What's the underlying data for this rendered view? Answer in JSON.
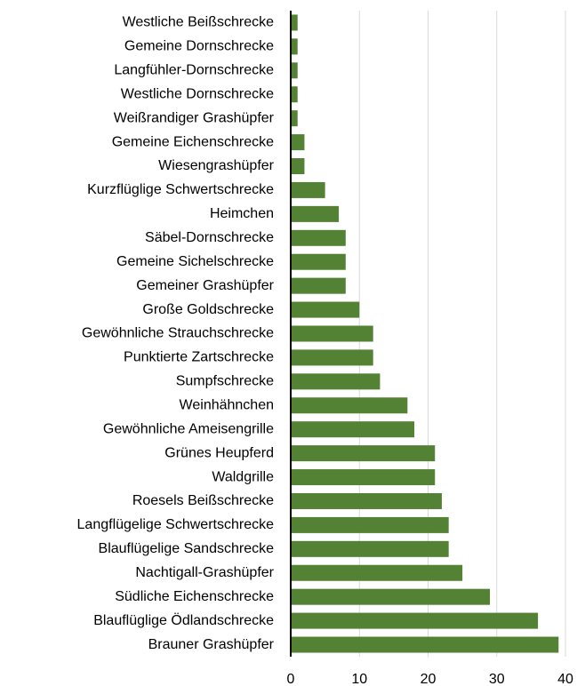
{
  "chart_data": {
    "type": "barh",
    "categories": [
      "Westliche Beißschrecke",
      "Gemeine Dornschrecke",
      "Langfühler-Dornschrecke",
      "Westliche Dornschrecke",
      "Weißrandiger Grashüpfer",
      "Gemeine Eichenschrecke",
      "Wiesengrashüpfer",
      "Kurzflüglige Schwertschrecke",
      "Heimchen",
      "Säbel-Dornschrecke",
      "Gemeine Sichelschrecke",
      "Gemeiner Grashüpfer",
      "Große Goldschrecke",
      "Gewöhnliche Strauchschrecke",
      "Punktierte Zartschrecke",
      "Sumpfschrecke",
      "Weinhähnchen",
      "Gewöhnliche Ameisengrille",
      "Grünes Heupferd",
      "Waldgrille",
      "Roesels Beißschrecke",
      "Langflügelige Schwertschrecke",
      "Blauflügelige Sandschrecke",
      "Nachtigall-Grashüpfer",
      "Südliche Eichenschrecke",
      "Blauflüglige Ödlandschrecke",
      "Brauner Grashüpfer"
    ],
    "values": [
      1,
      1,
      1,
      1,
      1,
      2,
      2,
      5,
      7,
      8,
      8,
      8,
      10,
      12,
      12,
      13,
      17,
      18,
      21,
      21,
      22,
      23,
      23,
      25,
      29,
      36,
      39
    ],
    "color": "#548235",
    "xlim": [
      0,
      40
    ],
    "xticks": [
      0,
      10,
      20,
      30,
      40
    ],
    "grid": true
  }
}
